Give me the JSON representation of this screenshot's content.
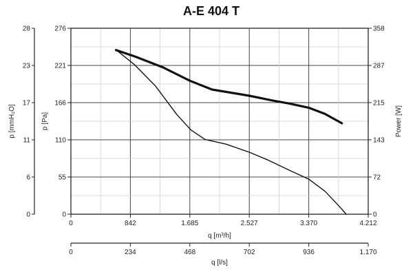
{
  "chart_data": {
    "type": "line",
    "title": "A-E 404 T",
    "xlabel": "q [m³/h]",
    "xlim": [
      0,
      4212
    ],
    "x_ticks": [
      "0",
      "842",
      "1.685",
      "2.527",
      "3.370",
      "4.212"
    ],
    "x2label": "q [l/s]",
    "x2lim": [
      0,
      1170
    ],
    "x2_ticks": [
      "0",
      "234",
      "468",
      "702",
      "936",
      "1.170"
    ],
    "ylabel": "p [Pa]",
    "ylim": [
      0,
      276
    ],
    "y_ticks": [
      "0",
      "55",
      "110",
      "166",
      "221",
      "276"
    ],
    "y_outer_label": "p [mmH₂O]",
    "y_outer_ticks": [
      "0",
      "6",
      "11",
      "17",
      "23",
      "28"
    ],
    "y_right_label": "Power [W]",
    "y_right_ticks": [
      "0",
      "72",
      "143",
      "215",
      "287",
      "358"
    ],
    "grid": true,
    "series": [
      {
        "role": "power",
        "axis": "right",
        "values": [
          [
            640,
            316
          ],
          [
            920,
            303
          ],
          [
            1300,
            283
          ],
          [
            1685,
            257
          ],
          [
            2000,
            240
          ],
          [
            2527,
            228
          ],
          [
            2850,
            219
          ],
          [
            3100,
            213
          ],
          [
            3370,
            205
          ],
          [
            3600,
            193
          ],
          [
            3840,
            175
          ]
        ]
      },
      {
        "role": "pressure",
        "axis": "left",
        "values": [
          [
            640,
            244
          ],
          [
            900,
            222
          ],
          [
            1200,
            190
          ],
          [
            1500,
            148
          ],
          [
            1700,
            125
          ],
          [
            1900,
            111
          ],
          [
            2200,
            104
          ],
          [
            2527,
            92
          ],
          [
            2800,
            80
          ],
          [
            3100,
            65
          ],
          [
            3370,
            52
          ],
          [
            3600,
            34
          ],
          [
            3800,
            12
          ],
          [
            3900,
            0
          ]
        ]
      }
    ]
  }
}
